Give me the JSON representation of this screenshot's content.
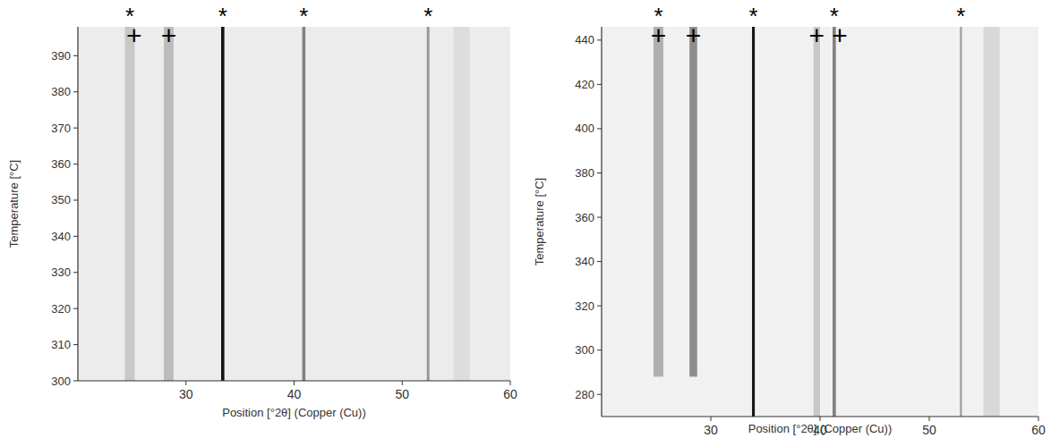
{
  "chart_data": [
    {
      "type": "heatmap",
      "x_label": "Position [°2θ] (Copper (Cu))",
      "y_label": "Temperature [°C]",
      "xlim": [
        20,
        60
      ],
      "xticks": [
        30,
        40,
        50,
        60
      ],
      "ylim": [
        300,
        398
      ],
      "yticks": [
        300,
        310,
        320,
        330,
        340,
        350,
        360,
        370,
        380,
        390
      ],
      "peaks": {
        "x": [
          24.8,
          28.4,
          33.4,
          40.9,
          52.4,
          55.5
        ],
        "intensities": [
          0.15,
          0.2,
          1.0,
          0.45,
          0.35,
          0.06
        ],
        "widths": [
          0.9,
          0.9,
          0.3,
          0.3,
          0.25,
          1.5
        ],
        "start": [
          300,
          300,
          300,
          300,
          300,
          300
        ]
      },
      "annotations": [
        {
          "text": "*",
          "x": 24.8
        },
        {
          "text": "*",
          "x": 33.4
        },
        {
          "text": "*",
          "x": 40.9
        },
        {
          "text": "*",
          "x": 52.4
        },
        {
          "text": "+",
          "x": 25.2
        },
        {
          "text": "+",
          "x": 28.4
        }
      ]
    },
    {
      "type": "heatmap",
      "x_label": "Position [°2θ] (Copper (Cu))",
      "y_label": "Temperature [°C]",
      "xlim": [
        20,
        60
      ],
      "xticks": [
        30,
        40,
        50,
        60
      ],
      "ylim": [
        270,
        446
      ],
      "yticks": [
        280,
        300,
        320,
        340,
        360,
        380,
        400,
        420,
        440
      ],
      "peaks": {
        "x": [
          25.2,
          28.4,
          33.9,
          39.7,
          41.3,
          52.9,
          55.7
        ],
        "intensities": [
          0.25,
          0.4,
          1.0,
          0.15,
          0.45,
          0.3,
          0.08
        ],
        "widths": [
          0.9,
          0.7,
          0.25,
          0.6,
          0.3,
          0.2,
          1.5
        ],
        "start": [
          288,
          288,
          270,
          270,
          270,
          270,
          270
        ]
      },
      "annotations": [
        {
          "text": "*",
          "x": 25.2
        },
        {
          "text": "*",
          "x": 33.9
        },
        {
          "text": "*",
          "x": 41.3
        },
        {
          "text": "*",
          "x": 52.9
        },
        {
          "text": "+",
          "x": 25.2
        },
        {
          "text": "+",
          "x": 28.4
        },
        {
          "text": "+",
          "x": 39.7
        },
        {
          "text": "+",
          "x": 41.8
        }
      ]
    }
  ]
}
